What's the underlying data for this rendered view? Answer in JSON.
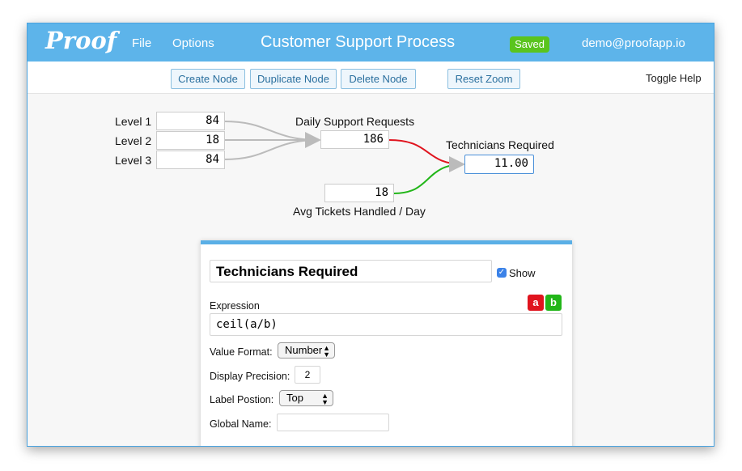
{
  "header": {
    "logo": "Proof",
    "menu": [
      "File",
      "Options"
    ],
    "title": "Customer Support Process",
    "status": "Saved",
    "user": "demo@proofapp.io"
  },
  "toolbar": {
    "buttons": [
      "Create Node",
      "Duplicate Node",
      "Delete Node",
      "Reset Zoom"
    ],
    "help": "Toggle Help"
  },
  "nodes": [
    {
      "label": "Level 1",
      "value": "84"
    },
    {
      "label": "Level 2",
      "value": "18"
    },
    {
      "label": "Level 3",
      "value": "84"
    },
    {
      "label": "Daily Support Requests",
      "value": "186"
    },
    {
      "label": "Technicians Required",
      "value": "11.00"
    },
    {
      "label": "Avg Tickets Handled / Day",
      "value": "18"
    }
  ],
  "panel": {
    "name": "Technicians Required",
    "show": "Show",
    "expression_label": "Expression",
    "variables": [
      "a",
      "b"
    ],
    "expression": "ceil(a/b)",
    "value_format_label": "Value Format:",
    "value_format": "Number",
    "precision_label": "Display Precision:",
    "precision": "2",
    "label_position_label": "Label Postion:",
    "label_position": "Top",
    "global_name_label": "Global Name:"
  }
}
